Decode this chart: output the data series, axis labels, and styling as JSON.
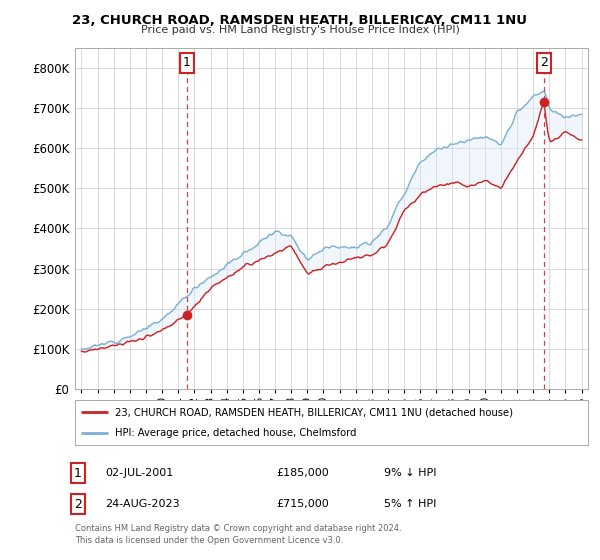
{
  "title": "23, CHURCH ROAD, RAMSDEN HEATH, BILLERICAY, CM11 1NU",
  "subtitle": "Price paid vs. HM Land Registry's House Price Index (HPI)",
  "legend_line1": "23, CHURCH ROAD, RAMSDEN HEATH, BILLERICAY, CM11 1NU (detached house)",
  "legend_line2": "HPI: Average price, detached house, Chelmsford",
  "annotation1_label": "1",
  "annotation1_date": "02-JUL-2001",
  "annotation1_price": "£185,000",
  "annotation1_hpi": "9% ↓ HPI",
  "annotation2_label": "2",
  "annotation2_date": "24-AUG-2023",
  "annotation2_price": "£715,000",
  "annotation2_hpi": "5% ↑ HPI",
  "footnote1": "Contains HM Land Registry data © Crown copyright and database right 2024.",
  "footnote2": "This data is licensed under the Open Government Licence v3.0.",
  "hpi_color": "#7ab0d4",
  "price_color": "#cc2222",
  "fill_color": "#d6e8f5",
  "marker_color": "#cc2222",
  "annotation_box_color": "#cc2222",
  "background_color": "#ffffff",
  "grid_color": "#cccccc",
  "vline_color": "#cc4444",
  "ylim": [
    0,
    850000
  ],
  "yticks": [
    0,
    100000,
    200000,
    300000,
    400000,
    500000,
    600000,
    700000,
    800000
  ],
  "year_start": 1995,
  "year_end": 2026,
  "purchase1_year": 2001.54,
  "purchase1_price": 185000,
  "purchase2_year": 2023.65,
  "purchase2_price": 715000
}
